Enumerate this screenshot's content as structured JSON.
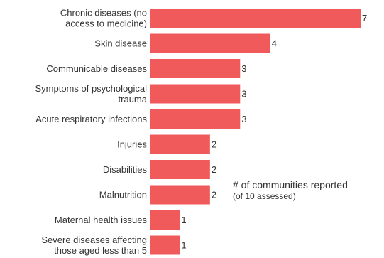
{
  "chart_data": {
    "type": "bar",
    "orientation": "horizontal",
    "categories": [
      [
        "Chronic diseases (no",
        "access to medicine)"
      ],
      [
        "Skin disease"
      ],
      [
        "Communicable diseases"
      ],
      [
        "Symptoms of psychological",
        "trauma"
      ],
      [
        "Acute respiratory infections"
      ],
      [
        "Injuries"
      ],
      [
        "Disabilities"
      ],
      [
        "Malnutrition"
      ],
      [
        "Maternal health issues"
      ],
      [
        "Severe diseases affecting",
        "those aged less than 5"
      ]
    ],
    "values": [
      7,
      4,
      3,
      3,
      3,
      2,
      2,
      2,
      1,
      1
    ],
    "value_labels": [
      "7",
      "4",
      "3",
      "3",
      "3",
      "2",
      "2",
      "2",
      "1",
      "1"
    ],
    "xlim": [
      0,
      7
    ],
    "bar_color": "#f05a5b",
    "grid": false
  },
  "legend": {
    "title": "# of communities reported",
    "subtitle": "(of 10 assessed)"
  }
}
